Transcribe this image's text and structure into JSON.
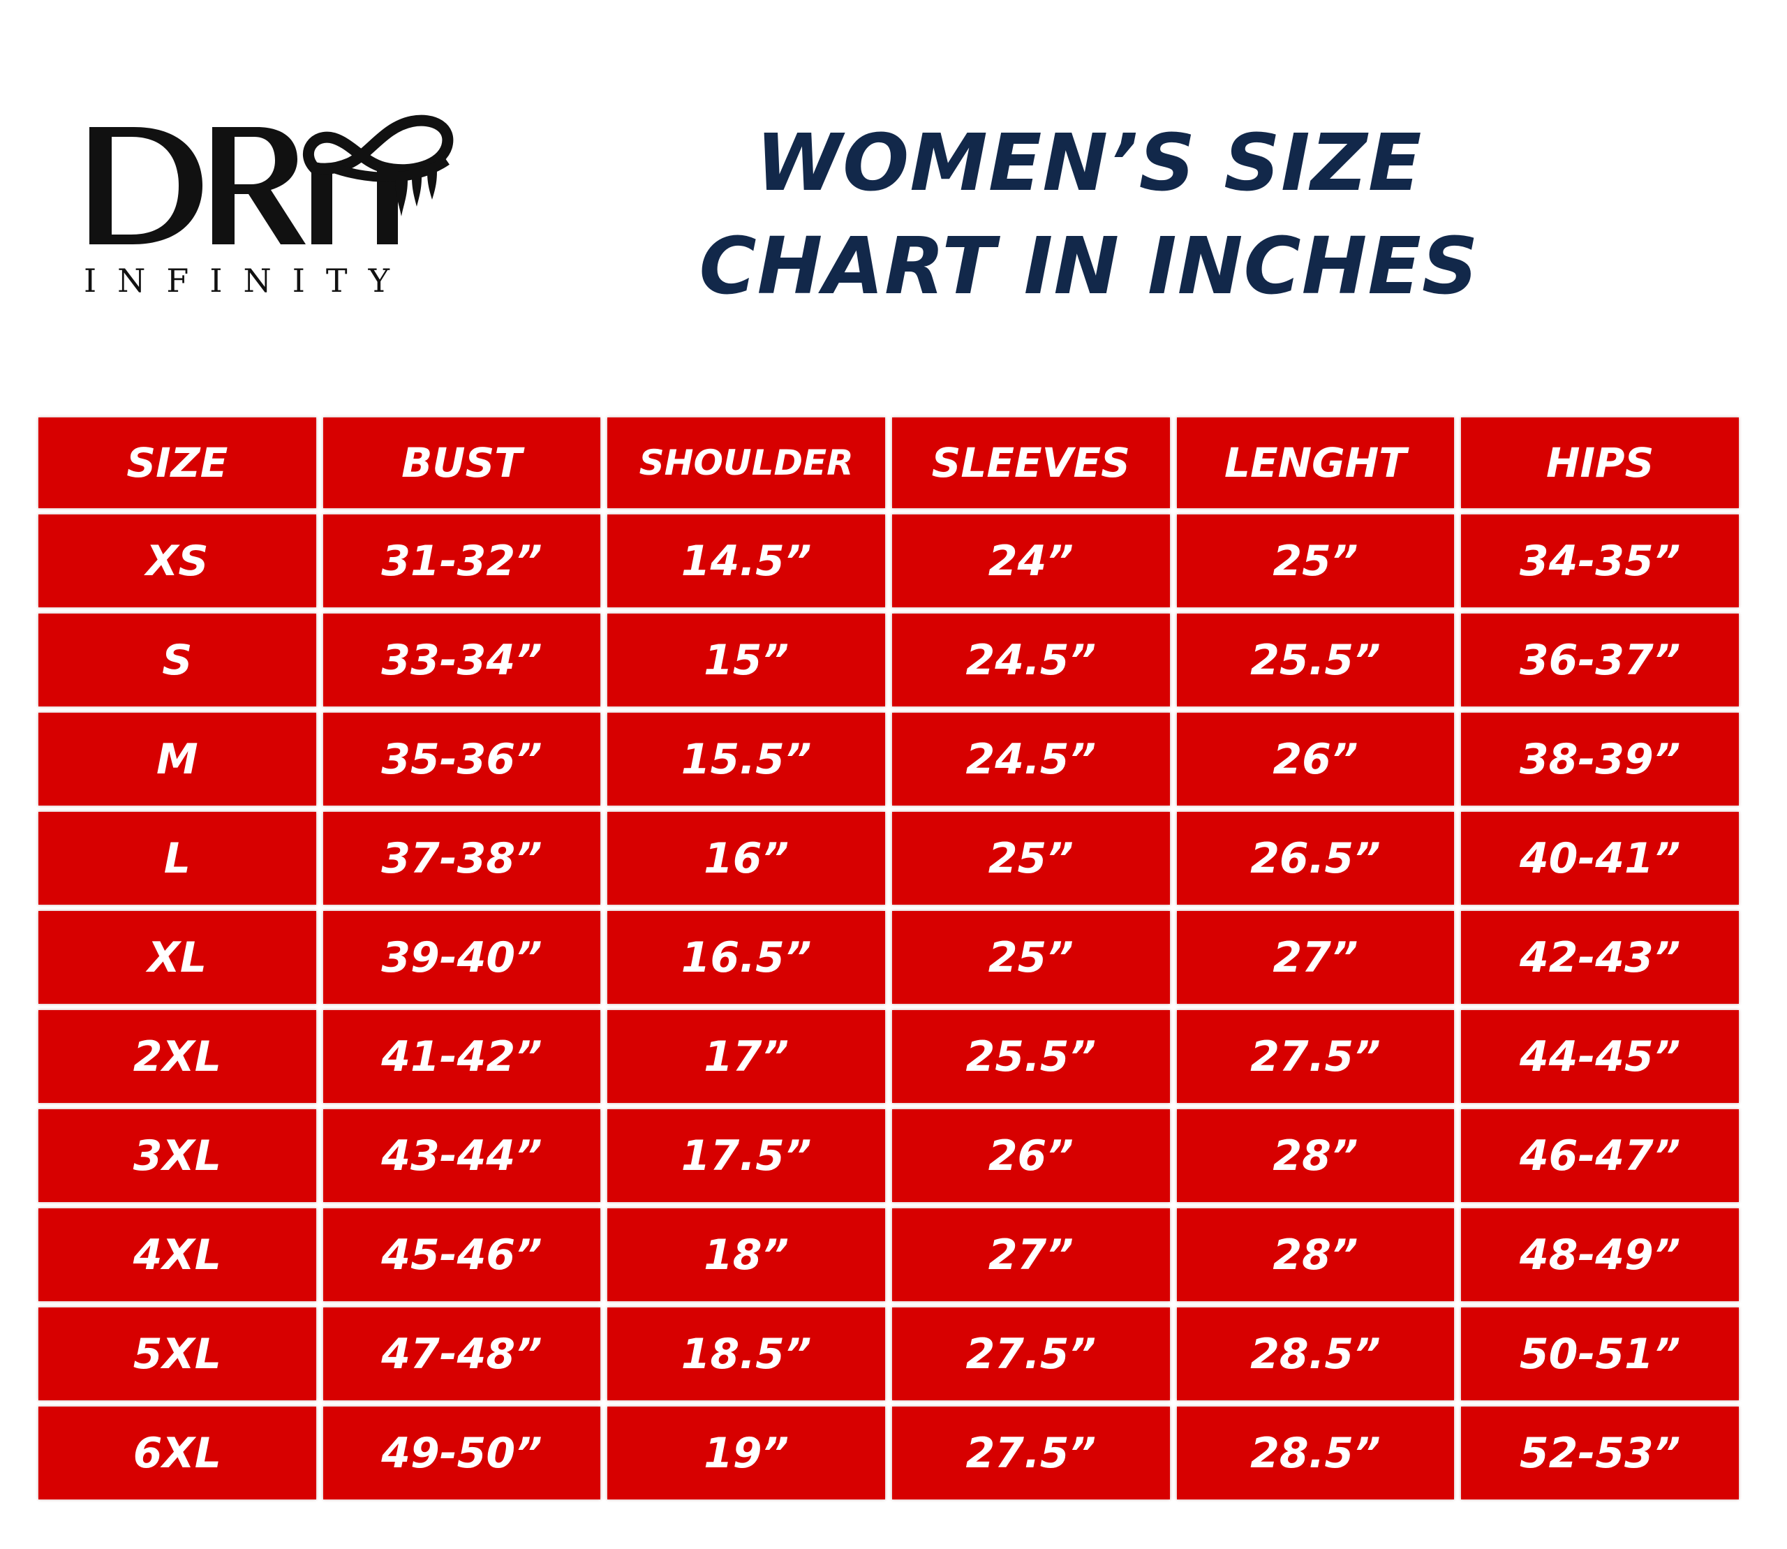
{
  "brand": {
    "logo_mark": "DRIP",
    "logo_subtitle": "INFINITY"
  },
  "title": {
    "line1": "WOMEN’S SIZE",
    "line2": "CHART IN INCHES"
  },
  "colors": {
    "cell_red": "#d70000",
    "title_navy": "#12284a",
    "logo_black": "#111111"
  },
  "table": {
    "headers": [
      "SIZE",
      "BUST",
      "SHOULDER",
      "SLEEVES",
      "LENGHT",
      "HIPS"
    ],
    "rows": [
      [
        "XS",
        "31-32”",
        "14.5”",
        "24”",
        "25”",
        "34-35”"
      ],
      [
        "S",
        "33-34”",
        "15”",
        "24.5”",
        "25.5”",
        "36-37”"
      ],
      [
        "M",
        "35-36”",
        "15.5”",
        "24.5”",
        "26”",
        "38-39”"
      ],
      [
        "L",
        "37-38”",
        "16”",
        "25”",
        "26.5”",
        "40-41”"
      ],
      [
        "XL",
        "39-40”",
        "16.5”",
        "25”",
        "27”",
        "42-43”"
      ],
      [
        "2XL",
        "41-42”",
        "17”",
        "25.5”",
        "27.5”",
        "44-45”"
      ],
      [
        "3XL",
        "43-44”",
        "17.5”",
        "26”",
        "28”",
        "46-47”"
      ],
      [
        "4XL",
        "45-46”",
        "18”",
        "27”",
        "28”",
        "48-49”"
      ],
      [
        "5XL",
        "47-48”",
        "18.5”",
        "27.5”",
        "28.5”",
        "50-51”"
      ],
      [
        "6XL",
        "49-50”",
        "19”",
        "27.5”",
        "28.5”",
        "52-53”"
      ]
    ]
  }
}
